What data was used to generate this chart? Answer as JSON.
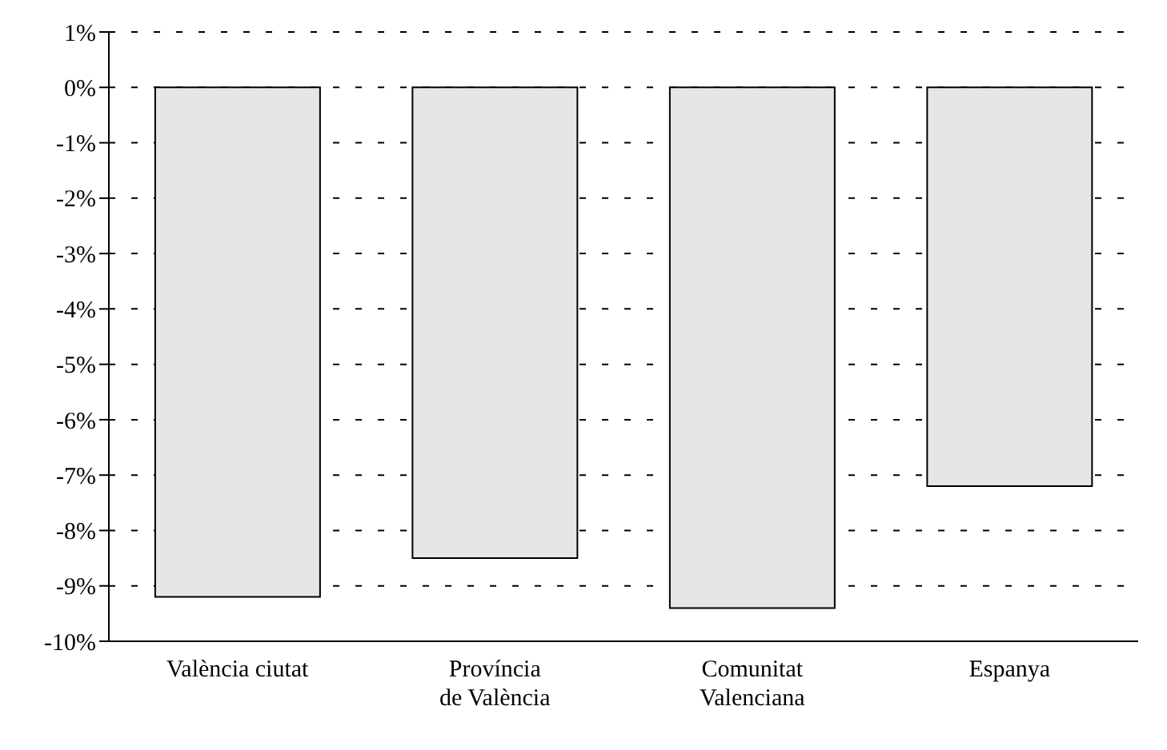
{
  "chart_data": {
    "type": "bar",
    "categories": [
      "València ciutat",
      "Província\nde València",
      "Comunitat\nValenciana",
      "Espanya"
    ],
    "values": [
      -9.2,
      -8.5,
      -9.4,
      -7.2
    ],
    "color": "#e6e6e6",
    "ylim": [
      -10,
      1
    ],
    "yticks": [
      {
        "value": 1,
        "label": "1%"
      },
      {
        "value": 0,
        "label": "0%"
      },
      {
        "value": -1,
        "label": "-1%"
      },
      {
        "value": -2,
        "label": "-2%"
      },
      {
        "value": -3,
        "label": "-3%"
      },
      {
        "value": -4,
        "label": "-4%"
      },
      {
        "value": -5,
        "label": "-5%"
      },
      {
        "value": -6,
        "label": "-6%"
      },
      {
        "value": -7,
        "label": "-7%"
      },
      {
        "value": -8,
        "label": "-8%"
      },
      {
        "value": -9,
        "label": "-9%"
      },
      {
        "value": -10,
        "label": "-10%"
      }
    ],
    "grid": "y",
    "legend": false
  }
}
